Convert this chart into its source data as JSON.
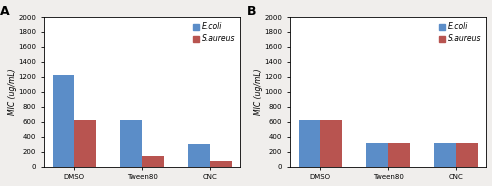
{
  "panel_A": {
    "label": "A",
    "categories": [
      "DMSO",
      "Tween80",
      "CNC"
    ],
    "ecoli": [
      1230,
      625,
      300
    ],
    "saureus": [
      625,
      150,
      75
    ],
    "ylim": [
      0,
      2000
    ],
    "yticks": [
      0,
      200,
      400,
      600,
      800,
      1000,
      1200,
      1400,
      1600,
      1800,
      2000
    ],
    "ylabel": "MIC (ug/mL)"
  },
  "panel_B": {
    "label": "B",
    "categories": [
      "DMSO",
      "Tween80",
      "CNC"
    ],
    "ecoli": [
      625,
      312,
      312
    ],
    "saureus": [
      625,
      312,
      312
    ],
    "ylim": [
      0,
      2000
    ],
    "yticks": [
      0,
      200,
      400,
      600,
      800,
      1000,
      1200,
      1400,
      1600,
      1800,
      2000
    ],
    "ylabel": "MIC (ug/mL)"
  },
  "ecoli_color": "#5B8DC8",
  "saureus_color": "#B85450",
  "bar_width": 0.32,
  "legend_ecoli": "E.coli",
  "legend_saureus": "S.aureus",
  "tick_fontsize": 5.0,
  "label_fontsize": 5.5,
  "legend_fontsize": 5.5,
  "panel_label_fontsize": 9,
  "fig_bg": "#F0EEEC"
}
